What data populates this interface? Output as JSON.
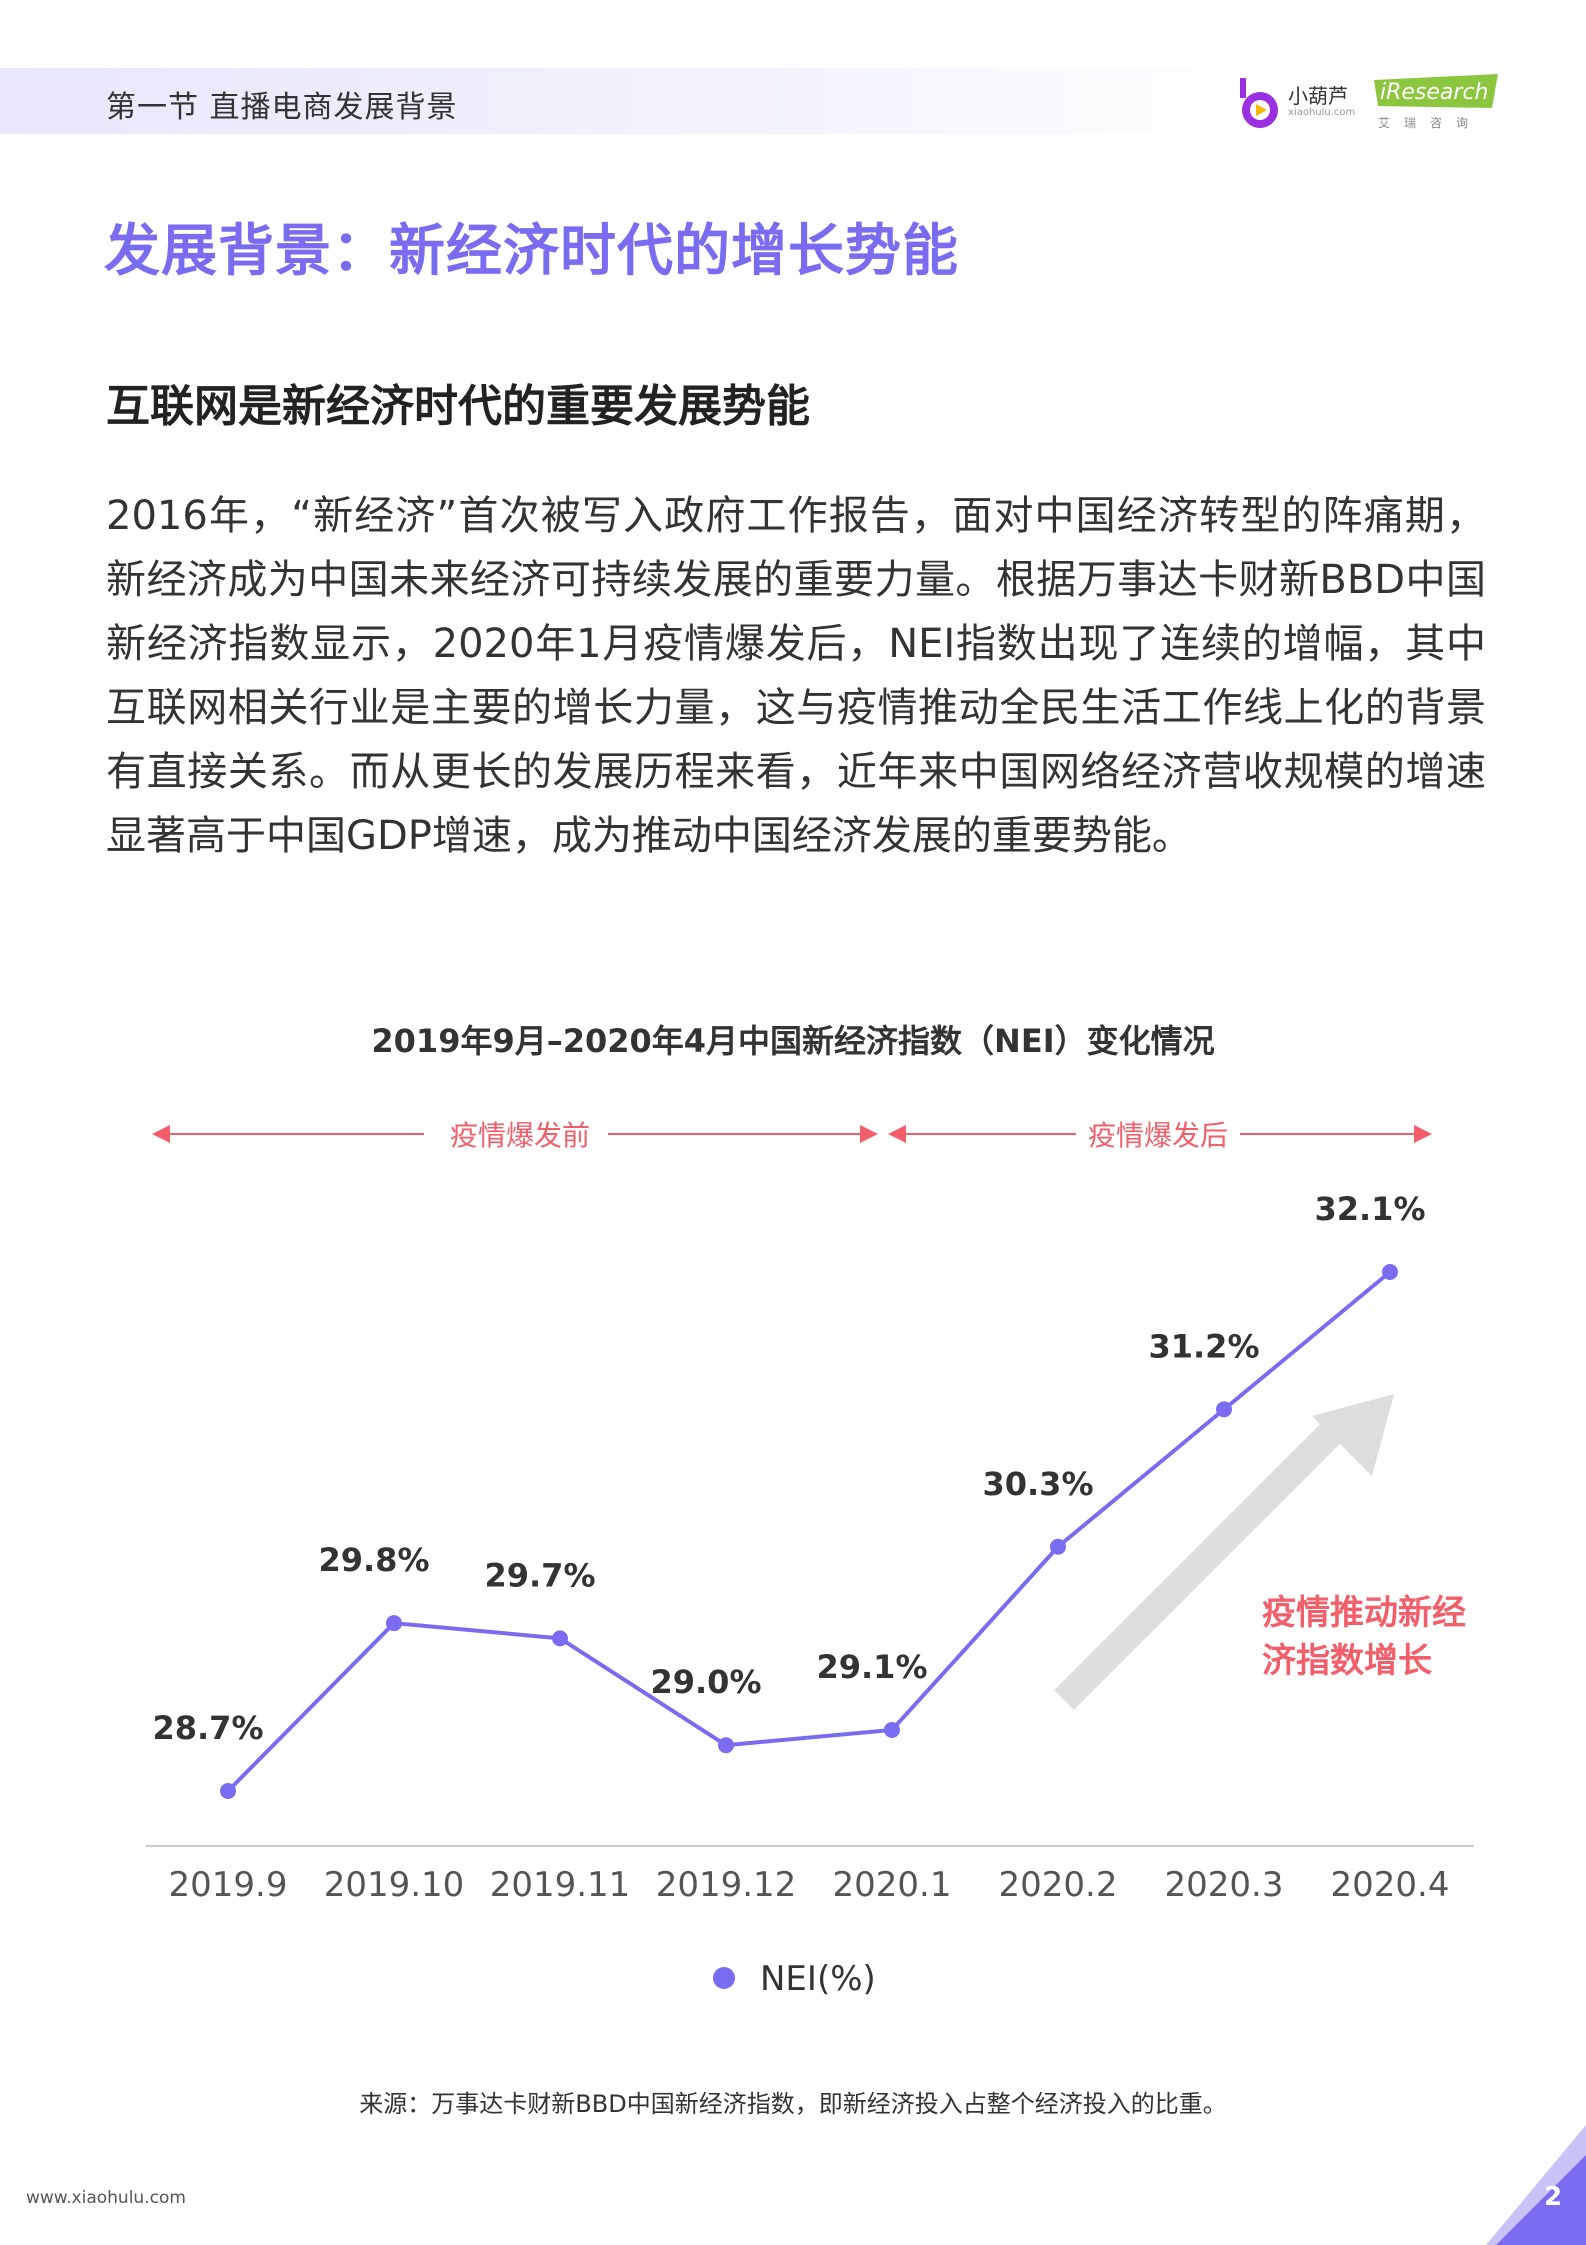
{
  "header": {
    "section_title": "第一节 直播电商发展背景",
    "logo_xiaohulu_name": "小葫芦",
    "logo_xiaohulu_url": "xiaohulu.com",
    "logo_iresearch_name": "iResearch",
    "logo_iresearch_cn": "艾瑞咨询"
  },
  "page_title": "发展背景：新经济时代的增长势能",
  "section_heading": "互联网是新经济时代的重要发展势能",
  "body_text": "2016年，“新经济”首次被写入政府工作报告，面对中国经济转型的阵痛期，新经济成为中国未来经济可持续发展的重要力量。根据万事达卡财新BBD中国新经济指数显示，2020年1月疫情爆发后，NEI指数出现了连续的增幅，其中互联网相关行业是主要的增长力量，这与疫情推动全民生活工作线上化的背景有直接关系。而从更长的发展历程来看，近年来中国网络经济营收规模的增速显著高于中国GDP增速，成为推动中国经济发展的重要势能。",
  "chart_data": {
    "type": "line",
    "title": "2019年9月–2020年4月中国新经济指数（NEI）变化情况",
    "categories": [
      "2019.9",
      "2019.10",
      "2019.11",
      "2019.12",
      "2020.1",
      "2020.2",
      "2020.3",
      "2020.4"
    ],
    "series": [
      {
        "name": "NEI(%)",
        "values": [
          28.7,
          29.8,
          29.7,
          29.0,
          29.1,
          30.3,
          31.2,
          32.1
        ],
        "labels": [
          "28.7%",
          "29.8%",
          "29.7%",
          "29.0%",
          "29.1%",
          "30.3%",
          "31.2%",
          "32.1%"
        ]
      }
    ],
    "period_labels": [
      "疫情爆发前",
      "疫情爆发后"
    ],
    "annotation_lines": [
      "疫情推动新经",
      "济指数增长"
    ],
    "legend_position": "bottom",
    "grid": false,
    "colors": {
      "line": "#7a6cf0",
      "period": "#f05f6a",
      "annotation": "#f05f6a",
      "trend_arrow": "#dddddd"
    }
  },
  "source_note": "来源：万事达卡财新BBD中国新经济指数，即新经济投入占整个经济投入的比重。",
  "footer": {
    "url": "www.xiaohulu.com",
    "page_number": "2"
  }
}
